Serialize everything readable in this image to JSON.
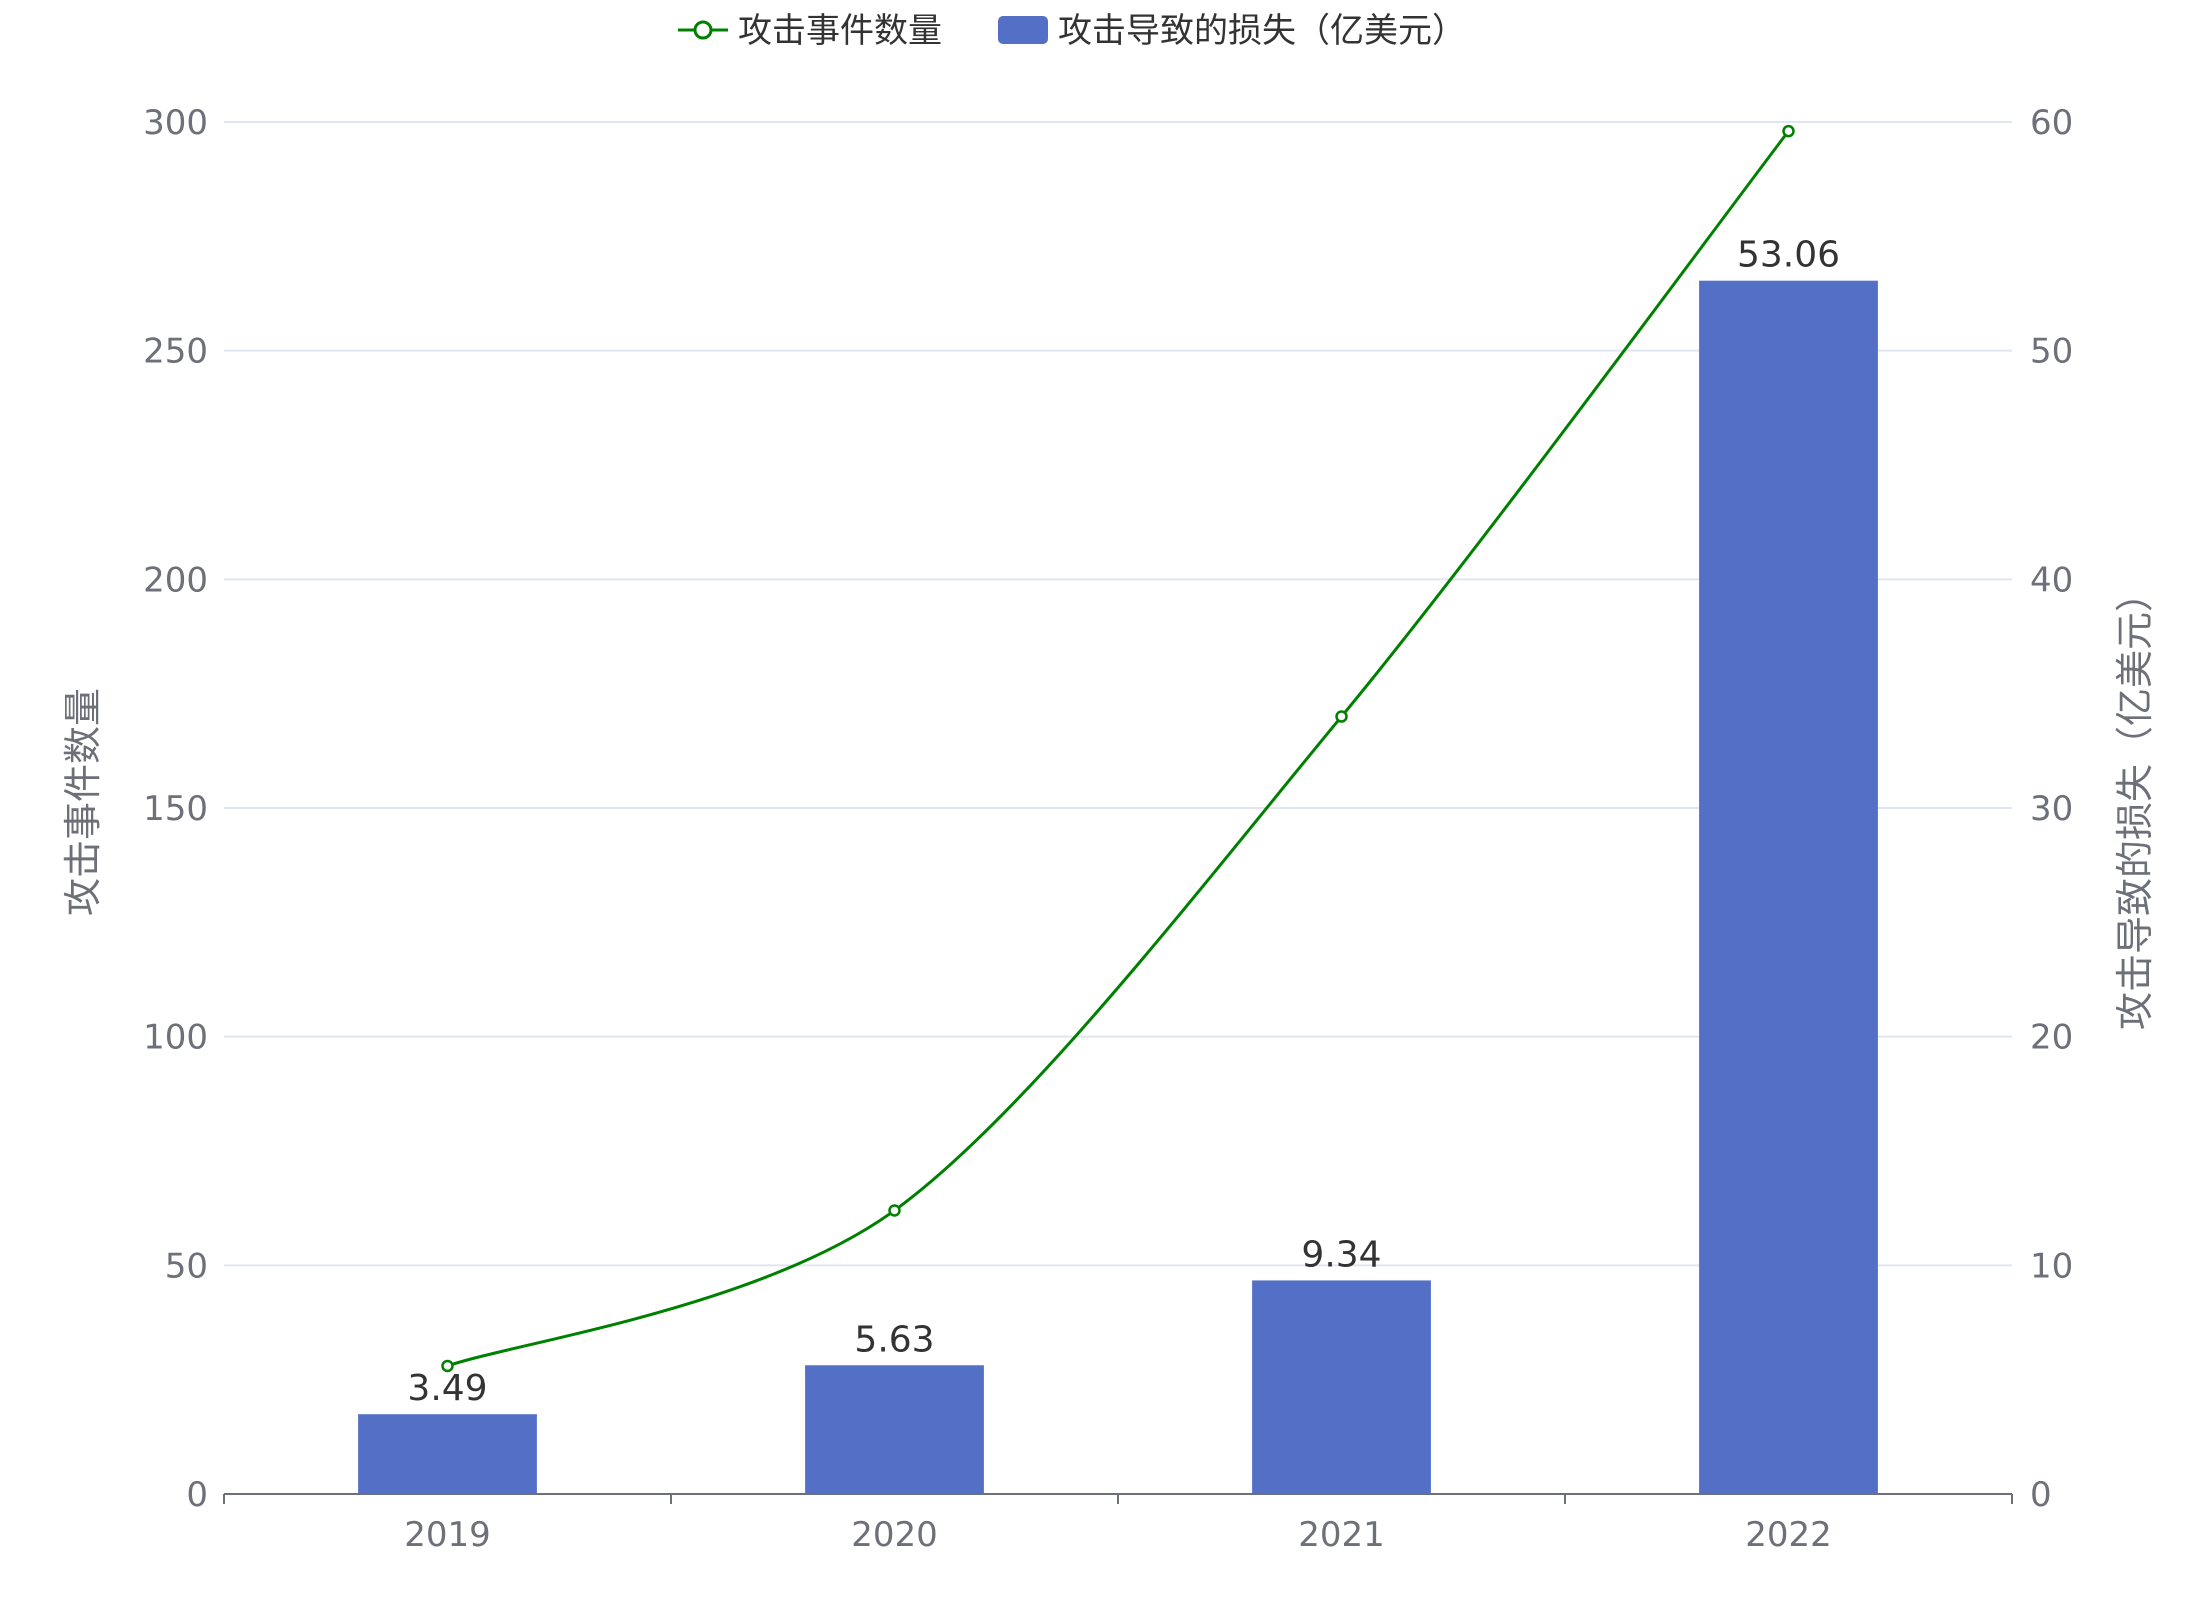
{
  "chart_data": {
    "type": "bar",
    "categories": [
      "2019",
      "2020",
      "2021",
      "2022"
    ],
    "series": [
      {
        "name": "攻击事件数量",
        "type": "line",
        "axis": "left",
        "values": [
          28,
          62,
          170,
          298
        ],
        "color": "#008000"
      },
      {
        "name": "攻击导致的损失（亿美元）",
        "type": "bar",
        "axis": "right",
        "values": [
          3.49,
          5.63,
          9.34,
          53.06
        ],
        "labels": [
          "3.49",
          "5.63",
          "9.34",
          "53.06"
        ],
        "color": "#5470c6"
      }
    ],
    "y_left": {
      "label": "攻击事件数量",
      "ticks": [
        "0",
        "50",
        "100",
        "150",
        "200",
        "250",
        "300"
      ],
      "range": [
        0,
        300
      ]
    },
    "y_right": {
      "label": "攻击导致的损失（亿美元）",
      "ticks": [
        "0",
        "10",
        "20",
        "30",
        "40",
        "50",
        "60"
      ],
      "range": [
        0,
        60
      ]
    },
    "grid": true,
    "legend_position": "top-center"
  }
}
